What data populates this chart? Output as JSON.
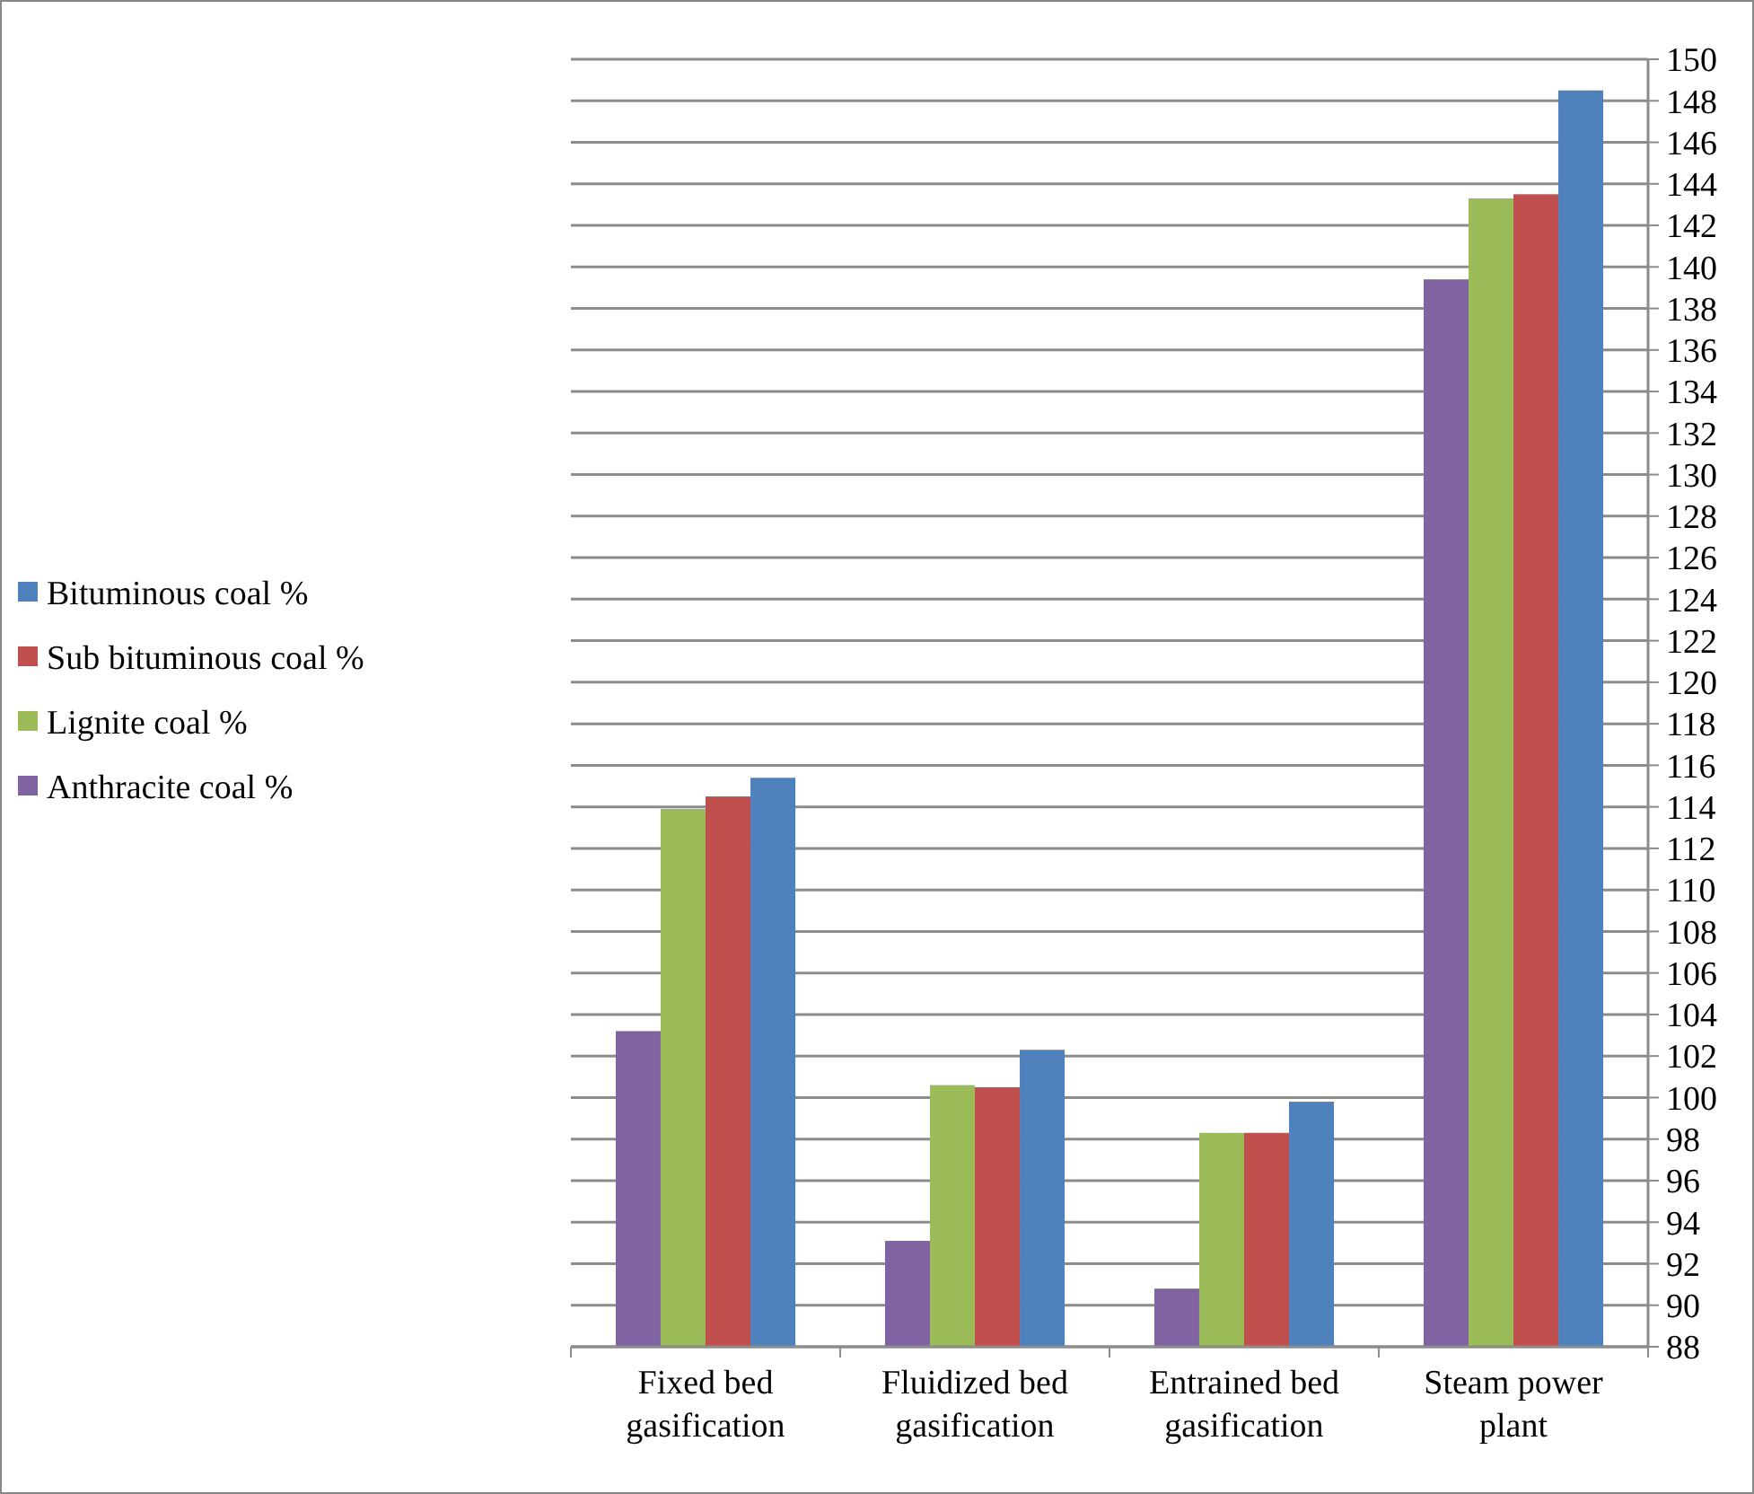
{
  "chart_data": {
    "type": "bar",
    "categories": [
      "Fixed bed gasification",
      "Fluidized bed gasification",
      "Entrained bed gasification",
      "Steam power plant"
    ],
    "series": [
      {
        "name": "Anthracite coal %",
        "color": "#8064a2",
        "values": [
          103.2,
          93.1,
          90.8,
          139.4
        ]
      },
      {
        "name": "Lignite coal %",
        "color": "#9bbb59",
        "values": [
          113.9,
          100.6,
          98.3,
          143.3
        ]
      },
      {
        "name": "Sub bituminous coal %",
        "color": "#c0504d",
        "values": [
          114.5,
          100.5,
          98.3,
          143.5
        ]
      },
      {
        "name": "Bituminous coal %",
        "color": "#4f81bd",
        "values": [
          115.4,
          102.3,
          99.8,
          148.5
        ]
      }
    ],
    "ylim": [
      88,
      150
    ],
    "yticks": [
      88,
      90,
      92,
      94,
      96,
      98,
      100,
      102,
      104,
      106,
      108,
      110,
      112,
      114,
      116,
      118,
      120,
      122,
      124,
      126,
      128,
      130,
      132,
      134,
      136,
      138,
      140,
      142,
      144,
      146,
      148,
      150
    ],
    "grid": "y",
    "legend": "left"
  }
}
